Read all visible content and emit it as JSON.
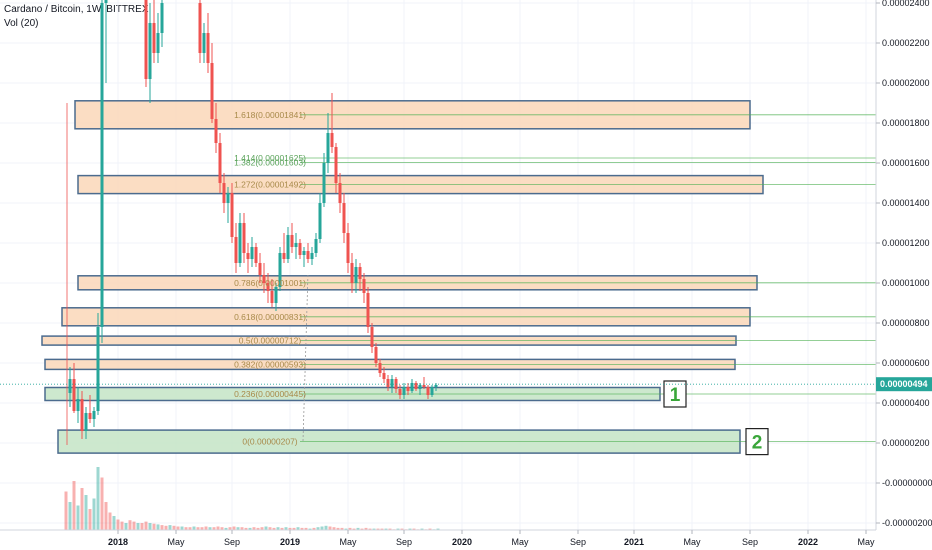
{
  "header": {
    "title": "Cardano / Bitcoin, 1W, BITTREX",
    "indicator": "Vol (20)"
  },
  "colors": {
    "zone_fill": "#fbd9bc",
    "zone_stroke": "#4b6b8e",
    "support_fill": "#c8e6c9",
    "up_candle": "#26a69a",
    "down_candle": "#ef5350",
    "price_tag": "#26a69a",
    "fib_line_green": "#4caf50",
    "grid": "#f0f3fa"
  },
  "chart_data": {
    "type": "candlestick",
    "y_axis_ticks": [
      "0.00002400",
      "0.00002200",
      "0.00002000",
      "0.00001800",
      "0.00001600",
      "0.00001400",
      "0.00001200",
      "0.00001000",
      "0.00000800",
      "0.00000600",
      "0.00000400",
      "0.00000200",
      "-0.00000000",
      "-0.00000200"
    ],
    "x_axis_ticks": [
      "2018",
      "May",
      "Sep",
      "2019",
      "May",
      "Sep",
      "2020",
      "May",
      "Sep",
      "2021",
      "May",
      "Sep",
      "2022",
      "May"
    ],
    "ylim": [
      -2.2e-06,
      2.45e-05
    ],
    "current_price": "0.00000494",
    "fib_levels": [
      {
        "label": "1.618(0.00001841)",
        "value": 1.841e-05
      },
      {
        "label": "1.414(0.00001625)",
        "value": 1.625e-05
      },
      {
        "label": "1.382(0.00001603)",
        "value": 1.603e-05
      },
      {
        "label": "1.272(0.00001492)",
        "value": 1.492e-05
      },
      {
        "label": "0.786(0.00001001)",
        "value": 1.001e-05
      },
      {
        "label": "0.618(0.00000831)",
        "value": 8.31e-06
      },
      {
        "label": "0.5(0.00000712)",
        "value": 7.12e-06
      },
      {
        "label": "0.382(0.00000593)",
        "value": 5.93e-06
      },
      {
        "label": "0.236(0.00000445)",
        "value": 4.45e-06
      },
      {
        "label": "0(0.00000207)",
        "value": 2.07e-06
      }
    ],
    "markers": [
      "1",
      "2"
    ]
  }
}
